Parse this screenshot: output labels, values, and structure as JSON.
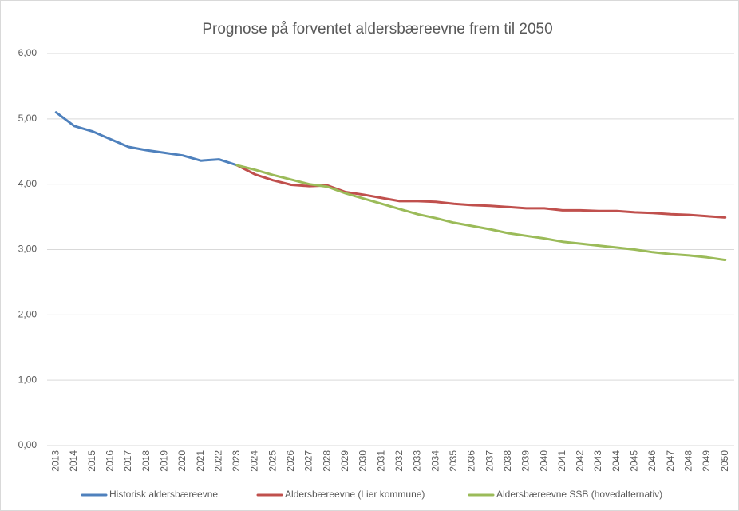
{
  "chart_data": {
    "type": "line",
    "title": "Prognose på forventet aldersbæreevne frem til 2050",
    "categories": [
      "2013",
      "2014",
      "2015",
      "2016",
      "2017",
      "2018",
      "2019",
      "2020",
      "2021",
      "2022",
      "2023",
      "2024",
      "2025",
      "2026",
      "2027",
      "2028",
      "2029",
      "2030",
      "2031",
      "2032",
      "2033",
      "2034",
      "2035",
      "2036",
      "2037",
      "2038",
      "2039",
      "2040",
      "2041",
      "2042",
      "2043",
      "2044",
      "2045",
      "2046",
      "2047",
      "2048",
      "2049",
      "2050"
    ],
    "series": [
      {
        "name": "Historisk aldersbæreevne",
        "color": "#4f81bd",
        "values": [
          5.1,
          4.89,
          4.81,
          4.69,
          4.57,
          4.52,
          4.48,
          4.44,
          4.36,
          4.38,
          4.29,
          null,
          null,
          null,
          null,
          null,
          null,
          null,
          null,
          null,
          null,
          null,
          null,
          null,
          null,
          null,
          null,
          null,
          null,
          null,
          null,
          null,
          null,
          null,
          null,
          null,
          null,
          null
        ]
      },
      {
        "name": "Aldersbæreevne (Lier kommune)",
        "color": "#c0504d",
        "values": [
          null,
          null,
          null,
          null,
          null,
          null,
          null,
          null,
          null,
          null,
          4.29,
          4.15,
          4.06,
          3.99,
          3.97,
          3.98,
          3.88,
          3.84,
          3.79,
          3.74,
          3.74,
          3.73,
          3.7,
          3.68,
          3.67,
          3.65,
          3.63,
          3.63,
          3.6,
          3.6,
          3.59,
          3.59,
          3.57,
          3.56,
          3.54,
          3.53,
          3.51,
          3.49
        ]
      },
      {
        "name": "Aldersbæreevne SSB (hovedalternativ)",
        "color": "#9bbb59",
        "values": [
          null,
          null,
          null,
          null,
          null,
          null,
          null,
          null,
          null,
          null,
          4.29,
          4.22,
          4.14,
          4.07,
          4.0,
          3.96,
          3.86,
          3.78,
          3.7,
          3.62,
          3.54,
          3.48,
          3.41,
          3.36,
          3.31,
          3.25,
          3.21,
          3.17,
          3.12,
          3.09,
          3.06,
          3.03,
          3.0,
          2.96,
          2.93,
          2.91,
          2.88,
          2.84
        ]
      }
    ],
    "ylim": [
      0,
      6
    ],
    "yticks": [
      {
        "value": 0,
        "label": "0,00"
      },
      {
        "value": 1,
        "label": "1,00"
      },
      {
        "value": 2,
        "label": "2,00"
      },
      {
        "value": 3,
        "label": "3,00"
      },
      {
        "value": 4,
        "label": "4,00"
      },
      {
        "value": 5,
        "label": "5,00"
      },
      {
        "value": 6,
        "label": "6,00"
      }
    ],
    "grid": true,
    "legend": "bottom"
  }
}
